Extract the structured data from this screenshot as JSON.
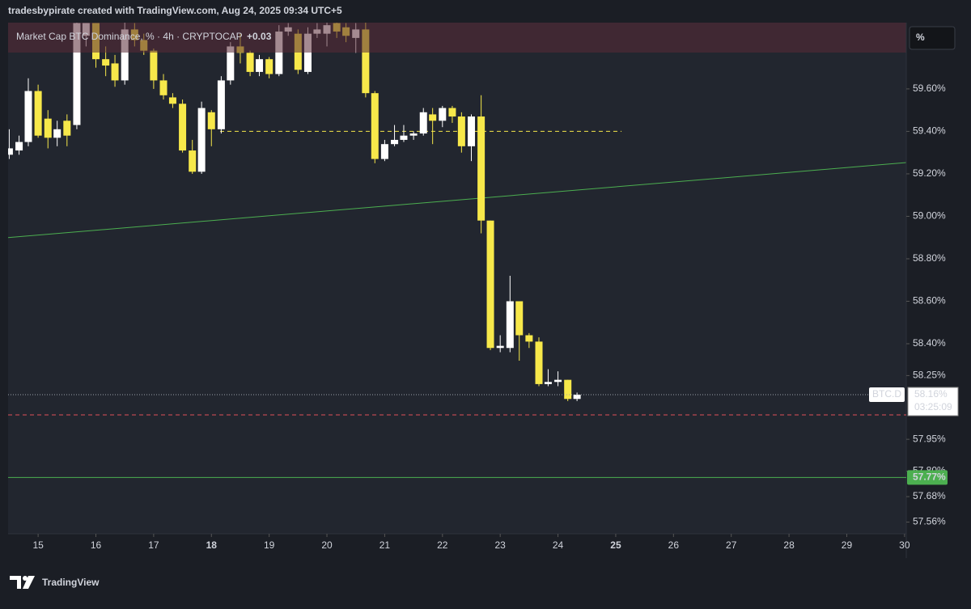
{
  "chart_data": {
    "type": "candlestick",
    "watermark": "tradesbypirate created with TradingView.com, Aug 24, 2025 09:34 UTC+5",
    "title": "Market Cap BTC Dominance, % · 4h · CRYPTOCAP",
    "change": "+0.03",
    "unit_button": "%",
    "brand": "TradingView",
    "symbol": "BTC.D",
    "countdown": "03:25:09",
    "up_color": "#ffffff",
    "down_color": "#f7e84a",
    "x": [
      14.5,
      14.67,
      14.83,
      15,
      15.17,
      15.33,
      15.5,
      15.67,
      15.83,
      16,
      16.17,
      16.33,
      16.5,
      16.67,
      16.83,
      17,
      17.17,
      17.33,
      17.5,
      17.67,
      17.83,
      18,
      18.17,
      18.33,
      18.5,
      18.67,
      18.83,
      19,
      19.17,
      19.33,
      19.5,
      19.67,
      19.83,
      20,
      20.17,
      20.33,
      20.5,
      20.67,
      20.83,
      21,
      21.17,
      21.33,
      21.5,
      21.67,
      21.83,
      22,
      22.17,
      22.33,
      22.5,
      22.67,
      22.83,
      23,
      23.17,
      23.33,
      23.5,
      23.67,
      23.83,
      24,
      24.17,
      24.33
    ],
    "open": [
      59.29,
      59.31,
      59.35,
      59.59,
      59.46,
      59.37,
      59.45,
      59.43,
      59.85,
      59.91,
      59.74,
      59.72,
      59.64,
      59.88,
      59.83,
      59.78,
      59.64,
      59.56,
      59.53,
      59.31,
      59.21,
      59.49,
      59.41,
      59.64,
      59.8,
      59.77,
      59.68,
      59.74,
      59.67,
      59.87,
      59.86,
      59.68,
      59.86,
      59.86,
      59.91,
      59.89,
      59.84,
      59.88,
      59.58,
      59.27,
      59.34,
      59.36,
      59.38,
      59.39,
      59.48,
      59.45,
      59.51,
      59.47,
      59.33,
      59.47,
      58.98,
      58.38,
      58.38,
      58.6,
      58.44,
      58.41,
      58.21,
      58.22,
      58.23,
      58.14
    ],
    "high": [
      59.41,
      59.38,
      59.65,
      59.62,
      59.5,
      59.45,
      59.48,
      59.95,
      59.91,
      59.91,
      59.8,
      59.76,
      59.92,
      59.91,
      59.86,
      59.79,
      59.67,
      59.58,
      59.55,
      59.36,
      59.54,
      59.5,
      59.66,
      59.82,
      59.86,
      59.78,
      59.76,
      59.75,
      59.9,
      59.91,
      59.88,
      59.89,
      59.91,
      59.92,
      59.92,
      59.91,
      59.91,
      59.92,
      59.59,
      59.36,
      59.43,
      59.43,
      59.4,
      59.51,
      59.51,
      59.52,
      59.52,
      59.49,
      59.48,
      59.57,
      58.98,
      58.44,
      58.72,
      58.6,
      58.45,
      58.43,
      58.28,
      58.27,
      58.23,
      58.17
    ],
    "low": [
      59.27,
      59.29,
      59.33,
      59.37,
      59.32,
      59.33,
      59.33,
      59.41,
      59.8,
      59.7,
      59.66,
      59.61,
      59.62,
      59.8,
      59.76,
      59.6,
      59.55,
      59.51,
      59.3,
      59.2,
      59.2,
      59.33,
      59.39,
      59.62,
      59.72,
      59.66,
      59.66,
      59.65,
      59.66,
      59.85,
      59.67,
      59.67,
      59.84,
      59.8,
      59.84,
      59.82,
      59.77,
      59.56,
      59.25,
      59.26,
      59.33,
      59.35,
      59.36,
      59.38,
      59.34,
      59.42,
      59.44,
      59.3,
      59.26,
      58.92,
      58.37,
      58.36,
      58.36,
      58.32,
      58.38,
      58.2,
      58.2,
      58.2,
      58.13,
      58.13
    ],
    "close": [
      59.32,
      59.35,
      59.59,
      59.38,
      59.37,
      59.41,
      59.38,
      59.91,
      59.91,
      59.74,
      59.71,
      59.64,
      59.88,
      59.83,
      59.78,
      59.64,
      59.57,
      59.53,
      59.31,
      59.21,
      59.51,
      59.41,
      59.64,
      59.8,
      59.77,
      59.68,
      59.74,
      59.67,
      59.87,
      59.89,
      59.69,
      59.86,
      59.88,
      59.9,
      59.87,
      59.85,
      59.88,
      59.58,
      59.27,
      59.34,
      59.36,
      59.38,
      59.39,
      59.49,
      59.45,
      59.51,
      59.47,
      59.33,
      59.47,
      58.98,
      58.38,
      58.39,
      58.6,
      58.44,
      58.41,
      58.21,
      58.22,
      58.23,
      58.14,
      58.16
    ],
    "xlim": [
      14.48,
      30.03
    ],
    "xticks": [
      15,
      16,
      17,
      18,
      19,
      20,
      21,
      22,
      23,
      24,
      25,
      26,
      27,
      28,
      29,
      30
    ],
    "bold_xticks": [
      18,
      25
    ],
    "ylim": [
      57.505,
      59.912
    ],
    "yticks": [
      {
        "value": 59.6,
        "label": "59.60%"
      },
      {
        "value": 59.4,
        "label": "59.40%"
      },
      {
        "value": 59.2,
        "label": "59.20%"
      },
      {
        "value": 59.0,
        "label": "59.00%"
      },
      {
        "value": 58.8,
        "label": "58.80%"
      },
      {
        "value": 58.6,
        "label": "58.60%"
      },
      {
        "value": 58.4,
        "label": "58.40%"
      },
      {
        "value": 58.25,
        "label": "58.25%"
      },
      {
        "value": 57.95,
        "label": "57.95%"
      },
      {
        "value": 57.8,
        "label": "57.80%"
      },
      {
        "value": 57.68,
        "label": "57.68%"
      },
      {
        "value": 57.56,
        "label": "57.56%"
      }
    ],
    "lines": [
      {
        "color": "#4caf50",
        "dash": false,
        "x": [
          14.48,
          30.03
        ],
        "y": [
          58.9,
          59.253
        ]
      },
      {
        "color": "#f7e84a",
        "dash": true,
        "x": [
          18.15,
          25.1
        ],
        "y": [
          59.4,
          59.4
        ]
      }
    ],
    "hlines": [
      {
        "value": 58.16,
        "color": "#9aa0aa",
        "style": "dotted",
        "label": "58.16%"
      },
      {
        "value": 58.065,
        "color": "#e0505a",
        "style": "dashed"
      },
      {
        "value": 57.77,
        "color": "#4caf50",
        "style": "solid",
        "label": "57.77%"
      }
    ]
  }
}
